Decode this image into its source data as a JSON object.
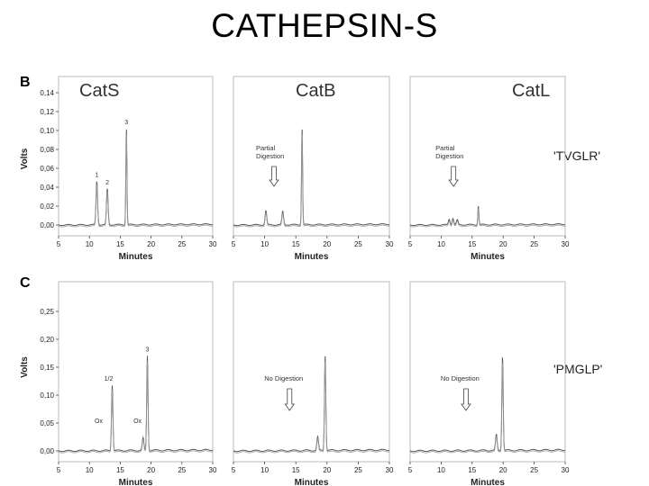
{
  "title": "CATHEPSIN-S",
  "colors": {
    "trace": "#555555",
    "trace_light": "#9a9a9a",
    "frame": "#bbbbbb",
    "text": "#222222"
  },
  "chart_data": [
    {
      "type": "line",
      "panel": "B",
      "substrate": "'TVGLR'",
      "ylabel": "Volts",
      "xlabel": "Minutes",
      "xlim": [
        5,
        30
      ],
      "ylim": [
        0,
        0.14
      ],
      "xticks": [
        "5",
        "10",
        "15",
        "20",
        "25",
        "30"
      ],
      "yticks": [
        "0,00",
        "0,02",
        "0,04",
        "0,06",
        "0,08",
        "0,10",
        "0,12",
        "0,14"
      ],
      "ytick_values": [
        0,
        0.02,
        0.04,
        0.06,
        0.08,
        0.1,
        0.12,
        0.14
      ],
      "subplots": [
        {
          "enzyme": "CatS",
          "show_yaxis": true,
          "peaks": [
            {
              "x": 11.2,
              "y": 0.046,
              "w": 0.18,
              "label": "1"
            },
            {
              "x": 12.9,
              "y": 0.038,
              "w": 0.18,
              "label": "2"
            },
            {
              "x": 16.0,
              "y": 0.102,
              "w": 0.12,
              "label": "3"
            }
          ],
          "annotation": null
        },
        {
          "enzyme": "CatB",
          "show_yaxis": false,
          "peaks": [
            {
              "x": 10.2,
              "y": 0.015,
              "w": 0.18
            },
            {
              "x": 12.9,
              "y": 0.014,
              "w": 0.18
            },
            {
              "x": 16.0,
              "y": 0.102,
              "w": 0.12
            }
          ],
          "annotation": {
            "text": [
              "Partial",
              "Digestion"
            ],
            "x": 11.5
          }
        },
        {
          "enzyme": "CatL",
          "show_yaxis": false,
          "peaks": [
            {
              "x": 11.3,
              "y": 0.006,
              "w": 0.18
            },
            {
              "x": 11.9,
              "y": 0.007,
              "w": 0.18
            },
            {
              "x": 12.6,
              "y": 0.005,
              "w": 0.18
            },
            {
              "x": 16.0,
              "y": 0.02,
              "w": 0.12
            }
          ],
          "annotation": {
            "text": [
              "Partial",
              "Digestion"
            ],
            "x": 12.0
          }
        }
      ]
    },
    {
      "type": "line",
      "panel": "C",
      "substrate": "'PMGLP'",
      "ylabel": "Volts",
      "xlabel": "Minutes",
      "xlim": [
        5,
        30
      ],
      "ylim": [
        0,
        0.3
      ],
      "xticks": [
        "5",
        "10",
        "15",
        "20",
        "25",
        "30"
      ],
      "yticks": [
        "0,00",
        "0,05",
        "0,10",
        "0,15",
        "0,20",
        "0,25"
      ],
      "ytick_values": [
        0,
        0.05,
        0.1,
        0.15,
        0.2,
        0.25
      ],
      "subplots": [
        {
          "enzyme": "",
          "show_yaxis": true,
          "peaks": [
            {
              "x": 13.7,
              "y": 0.118,
              "w": 0.16,
              "label": "1/2"
            },
            {
              "x": 18.7,
              "y": 0.022,
              "w": 0.18
            },
            {
              "x": 19.4,
              "y": 0.17,
              "w": 0.15,
              "label": "3"
            }
          ],
          "ox_labels": [
            {
              "text": "Ox",
              "x": 11.5,
              "y": 0.05
            },
            {
              "text": "Ox",
              "x": 17.8,
              "y": 0.05
            }
          ],
          "annotation": null
        },
        {
          "enzyme": "",
          "show_yaxis": false,
          "peaks": [
            {
              "x": 18.5,
              "y": 0.024,
              "w": 0.18
            },
            {
              "x": 19.7,
              "y": 0.17,
              "w": 0.15
            }
          ],
          "annotation": {
            "text": [
              "No Digestion"
            ],
            "x": 14.0
          }
        },
        {
          "enzyme": "",
          "show_yaxis": false,
          "peaks": [
            {
              "x": 18.9,
              "y": 0.028,
              "w": 0.18
            },
            {
              "x": 19.9,
              "y": 0.17,
              "w": 0.15
            }
          ],
          "annotation": {
            "text": [
              "No Digestion"
            ],
            "x": 14.0
          }
        }
      ]
    }
  ]
}
